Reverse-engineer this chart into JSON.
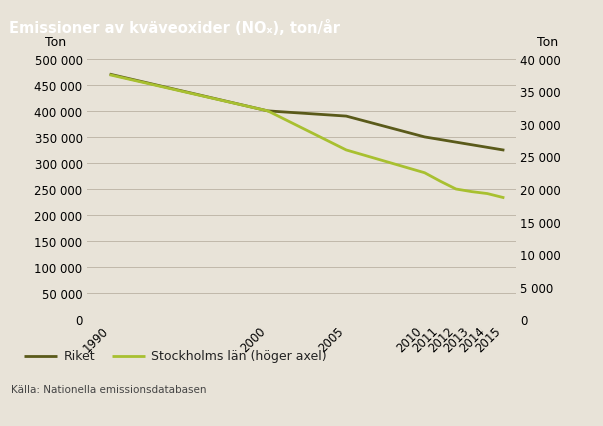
{
  "title": "Emissioner av kväveoxider (NOₓ), ton/år",
  "title_bg_color": "#9e8f82",
  "bg_color": "#e8e3d8",
  "plot_bg_color": "#e8e3d8",
  "source_text": "Källa: Nationella emissionsdatabasen",
  "years": [
    1990,
    2000,
    2005,
    2010,
    2011,
    2012,
    2013,
    2014,
    2015
  ],
  "riket": [
    470000,
    400000,
    390000,
    350000,
    345000,
    340000,
    335000,
    330000,
    325000
  ],
  "stockholm": [
    37500,
    32000,
    26000,
    22500,
    21200,
    20000,
    19600,
    19300,
    18700
  ],
  "riket_color": "#5a5a1a",
  "stockholm_color": "#a8c030",
  "ylim_left": [
    0,
    500000
  ],
  "ylim_right": [
    0,
    40000
  ],
  "yticks_left": [
    0,
    50000,
    100000,
    150000,
    200000,
    250000,
    300000,
    350000,
    400000,
    450000,
    500000
  ],
  "yticks_right": [
    0,
    5000,
    10000,
    15000,
    20000,
    25000,
    30000,
    35000,
    40000
  ],
  "legend_riket": "Riket",
  "legend_stockholm": "Stockholms län (höger axel)",
  "line_width": 2.0,
  "grid_color": "#c0b8aa",
  "ylabel_left": "Ton",
  "ylabel_right": "Ton"
}
